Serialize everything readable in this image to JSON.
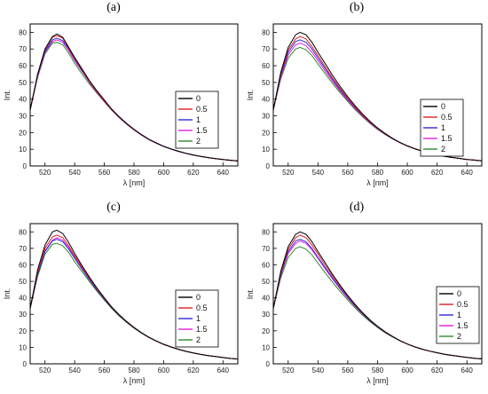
{
  "chart_data": [
    {
      "type": "line",
      "panel_label": "(a)",
      "xlabel": "λ [nm]",
      "ylabel": "Int.",
      "xlim": [
        510,
        650
      ],
      "ylim": [
        0,
        85
      ],
      "x_ticks": [
        520,
        540,
        560,
        580,
        600,
        620,
        640
      ],
      "y_ticks": [
        0,
        10,
        20,
        30,
        40,
        50,
        60,
        70,
        80
      ],
      "legend_position": "center-right",
      "x": [
        510,
        515,
        520,
        525,
        528,
        532,
        536,
        540,
        545,
        550,
        555,
        560,
        565,
        570,
        575,
        580,
        585,
        590,
        595,
        600,
        605,
        610,
        615,
        620,
        625,
        630,
        635,
        640,
        645,
        650
      ],
      "series": [
        {
          "name": "0",
          "color": "#000000",
          "values": [
            33.5,
            55,
            70,
            77.5,
            79,
            77,
            71,
            65,
            58,
            51,
            45,
            39.5,
            34,
            29.5,
            25.5,
            22,
            18.8,
            16,
            13.8,
            11.8,
            10.2,
            8.8,
            7.6,
            6.6,
            5.7,
            5,
            4.4,
            3.8,
            3.4,
            3
          ]
        },
        {
          "name": "0.5",
          "color": "#e02020",
          "values": [
            33.5,
            54.5,
            69.5,
            77,
            78,
            76.5,
            70.5,
            64.5,
            57.5,
            50.5,
            44.5,
            39,
            33.8,
            29.3,
            25.3,
            21.8,
            18.7,
            16,
            13.7,
            11.8,
            10.2,
            8.8,
            7.6,
            6.6,
            5.7,
            5,
            4.4,
            3.8,
            3.4,
            3
          ]
        },
        {
          "name": "1",
          "color": "#2a2ad8",
          "values": [
            33.5,
            54,
            68.5,
            75.5,
            76.5,
            75,
            70,
            64,
            57,
            50.5,
            44.5,
            39,
            33.8,
            29.2,
            25.2,
            21.7,
            18.6,
            15.9,
            13.7,
            11.7,
            10.1,
            8.7,
            7.5,
            6.5,
            5.7,
            5,
            4.4,
            3.8,
            3.4,
            3
          ]
        },
        {
          "name": "1.5",
          "color": "#e020e0",
          "values": [
            33.5,
            53.5,
            68,
            74.5,
            75.5,
            74,
            69,
            63,
            56.5,
            50,
            44,
            38.6,
            33.5,
            29,
            25,
            21.6,
            18.5,
            15.8,
            13.6,
            11.7,
            10.1,
            8.7,
            7.5,
            6.5,
            5.7,
            5,
            4.4,
            3.8,
            3.4,
            3
          ]
        },
        {
          "name": "2",
          "color": "#2e8b2e",
          "values": [
            33.5,
            53,
            67,
            73.5,
            74,
            72.5,
            67.5,
            61.5,
            55,
            49,
            43.5,
            38.3,
            33.3,
            28.9,
            25,
            21.5,
            18.5,
            15.8,
            13.6,
            11.7,
            10.1,
            8.7,
            7.5,
            6.5,
            5.7,
            5,
            4.4,
            3.8,
            3.4,
            3
          ]
        }
      ]
    },
    {
      "type": "line",
      "panel_label": "(b)",
      "xlabel": "λ [nm]",
      "ylabel": "Int.",
      "xlim": [
        510,
        650
      ],
      "ylim": [
        0,
        85
      ],
      "x_ticks": [
        520,
        540,
        560,
        580,
        600,
        620,
        640
      ],
      "y_ticks": [
        0,
        10,
        20,
        30,
        40,
        50,
        60,
        70,
        80
      ],
      "legend_position": "center-right",
      "x": [
        510,
        515,
        520,
        525,
        528,
        532,
        536,
        540,
        545,
        550,
        555,
        560,
        565,
        570,
        575,
        580,
        585,
        590,
        595,
        600,
        605,
        610,
        615,
        620,
        625,
        630,
        635,
        640,
        645,
        650
      ],
      "series": [
        {
          "name": "0",
          "color": "#000000",
          "values": [
            33.5,
            56,
            71,
            78.5,
            80,
            78.5,
            74,
            68,
            61,
            54,
            47.5,
            41.5,
            36,
            31,
            26.6,
            22.8,
            19.5,
            16.6,
            14.1,
            12,
            10.3,
            8.9,
            7.7,
            6.7,
            5.8,
            5.1,
            4.5,
            3.9,
            3.5,
            3.1
          ]
        },
        {
          "name": "0.5",
          "color": "#e02020",
          "values": [
            33.5,
            55,
            69.5,
            76,
            77.5,
            76,
            71.5,
            66,
            59,
            52.5,
            46.3,
            40.5,
            35.2,
            30.4,
            26.2,
            22.5,
            19.3,
            16.5,
            14,
            12,
            10.3,
            8.9,
            7.7,
            6.7,
            5.8,
            5.1,
            4.5,
            3.9,
            3.5,
            3.1
          ]
        },
        {
          "name": "1",
          "color": "#2a2ad8",
          "values": [
            33.5,
            54,
            68,
            74.5,
            75.5,
            74,
            70,
            64.5,
            58,
            51.5,
            45.5,
            40,
            34.8,
            30.1,
            26,
            22.3,
            19.1,
            16.4,
            14,
            12,
            10.3,
            8.9,
            7.7,
            6.7,
            5.8,
            5.1,
            4.5,
            3.9,
            3.5,
            3.1
          ]
        },
        {
          "name": "1.5",
          "color": "#e020e0",
          "values": [
            33.5,
            53,
            66.5,
            72.5,
            73.5,
            72,
            68,
            63,
            56.5,
            50.5,
            44.7,
            39.3,
            34.3,
            29.7,
            25.7,
            22.1,
            19,
            16.3,
            13.9,
            11.9,
            10.3,
            8.9,
            7.7,
            6.7,
            5.8,
            5.1,
            4.5,
            3.9,
            3.5,
            3.1
          ]
        },
        {
          "name": "2",
          "color": "#2e8b2e",
          "values": [
            33.5,
            52,
            64.5,
            70,
            71,
            69.5,
            66,
            61,
            55,
            49.2,
            43.8,
            38.6,
            33.7,
            29.3,
            25.4,
            21.9,
            18.8,
            16.2,
            13.9,
            11.9,
            10.2,
            8.8,
            7.6,
            6.6,
            5.8,
            5.1,
            4.5,
            3.9,
            3.5,
            3.1
          ]
        }
      ]
    },
    {
      "type": "line",
      "panel_label": "(c)",
      "xlabel": "λ [nm]",
      "ylabel": "Int.",
      "xlim": [
        510,
        650
      ],
      "ylim": [
        0,
        85
      ],
      "x_ticks": [
        520,
        540,
        560,
        580,
        600,
        620,
        640
      ],
      "y_ticks": [
        0,
        10,
        20,
        30,
        40,
        50,
        60,
        70,
        80
      ],
      "legend_position": "center-right",
      "x": [
        510,
        515,
        520,
        525,
        528,
        532,
        536,
        540,
        545,
        550,
        555,
        560,
        565,
        570,
        575,
        580,
        585,
        590,
        595,
        600,
        605,
        610,
        615,
        620,
        625,
        630,
        635,
        640,
        645,
        650
      ],
      "series": [
        {
          "name": "0",
          "color": "#000000",
          "values": [
            33.5,
            57,
            72,
            80,
            81,
            79,
            73.5,
            67,
            59.5,
            52.5,
            46,
            40,
            34.5,
            29.8,
            25.7,
            22.1,
            18.9,
            16.2,
            13.9,
            11.9,
            10.2,
            8.8,
            7.6,
            6.6,
            5.7,
            5,
            4.4,
            3.8,
            3.3,
            2.9
          ]
        },
        {
          "name": "0.5",
          "color": "#e02020",
          "values": [
            33.5,
            55.5,
            70,
            77,
            78,
            76.5,
            71.5,
            65.5,
            58.5,
            51.8,
            45.5,
            39.6,
            34.2,
            29.6,
            25.5,
            22,
            18.8,
            16.1,
            13.8,
            11.9,
            10.2,
            8.8,
            7.6,
            6.6,
            5.7,
            5,
            4.4,
            3.8,
            3.3,
            2.9
          ]
        },
        {
          "name": "1",
          "color": "#2a2ad8",
          "values": [
            33.5,
            54,
            68,
            74.5,
            75.5,
            74,
            69.5,
            64,
            57.3,
            50.8,
            44.8,
            39.1,
            33.9,
            29.3,
            25.3,
            21.8,
            18.7,
            16,
            13.8,
            11.8,
            10.2,
            8.8,
            7.6,
            6.6,
            5.7,
            5,
            4.4,
            3.8,
            3.3,
            2.9
          ]
        },
        {
          "name": "1.5",
          "color": "#e020e0",
          "values": [
            33.5,
            54.5,
            68.5,
            75,
            76.5,
            75,
            70.5,
            64.8,
            58,
            51.4,
            45.2,
            39.4,
            34.1,
            29.5,
            25.4,
            21.9,
            18.8,
            16.1,
            13.8,
            11.8,
            10.2,
            8.8,
            7.6,
            6.6,
            5.7,
            5,
            4.4,
            3.8,
            3.3,
            2.9
          ]
        },
        {
          "name": "2",
          "color": "#2e8b2e",
          "values": [
            33.5,
            53,
            66.5,
            72.5,
            73,
            71.5,
            67.5,
            62,
            55.8,
            49.8,
            44,
            38.6,
            33.5,
            29,
            25.1,
            21.6,
            18.6,
            16,
            13.7,
            11.8,
            10.2,
            8.8,
            7.6,
            6.6,
            5.7,
            5,
            4.4,
            3.8,
            3.3,
            2.9
          ]
        }
      ]
    },
    {
      "type": "line",
      "panel_label": "(d)",
      "xlabel": "λ [nm]",
      "ylabel": "Int.",
      "xlim": [
        510,
        650
      ],
      "ylim": [
        0,
        85
      ],
      "x_ticks": [
        520,
        540,
        560,
        580,
        600,
        620,
        640
      ],
      "y_ticks": [
        0,
        10,
        20,
        30,
        40,
        50,
        60,
        70,
        80
      ],
      "legend_position": "center-right",
      "x": [
        510,
        515,
        520,
        525,
        528,
        532,
        536,
        540,
        545,
        550,
        555,
        560,
        565,
        570,
        575,
        580,
        585,
        590,
        595,
        600,
        605,
        610,
        615,
        620,
        625,
        630,
        635,
        640,
        645,
        650
      ],
      "series": [
        {
          "name": "0",
          "color": "#000000",
          "values": [
            33.5,
            56,
            71,
            78.5,
            80,
            78.5,
            74,
            68,
            61,
            54,
            47.5,
            41.5,
            36,
            31,
            26.6,
            22.8,
            19.5,
            16.6,
            14.1,
            12,
            10.3,
            8.9,
            7.7,
            6.7,
            5.8,
            5.1,
            4.5,
            3.9,
            3.4,
            3
          ]
        },
        {
          "name": "0.5",
          "color": "#e02020",
          "values": [
            33.5,
            55,
            69.5,
            76.5,
            78,
            76.5,
            72,
            66.5,
            59.5,
            53,
            46.8,
            41,
            35.6,
            30.7,
            26.4,
            22.7,
            19.4,
            16.6,
            14.1,
            12,
            10.3,
            8.9,
            7.7,
            6.7,
            5.8,
            5.1,
            4.5,
            3.9,
            3.4,
            3
          ]
        },
        {
          "name": "1",
          "color": "#2a2ad8",
          "values": [
            33.5,
            54,
            68,
            74.5,
            75.5,
            74,
            70,
            64.5,
            58,
            51.8,
            45.8,
            40.2,
            35,
            30.3,
            26.1,
            22.5,
            19.3,
            16.5,
            14.1,
            12,
            10.3,
            8.9,
            7.7,
            6.7,
            5.8,
            5.1,
            4.5,
            3.9,
            3.4,
            3
          ]
        },
        {
          "name": "1.5",
          "color": "#e020e0",
          "values": [
            33.5,
            53.5,
            67,
            73,
            74.5,
            73,
            69,
            63.8,
            57.3,
            51.2,
            45.3,
            39.8,
            34.7,
            30.1,
            26,
            22.4,
            19.2,
            16.5,
            14.1,
            12,
            10.3,
            8.9,
            7.7,
            6.7,
            5.8,
            5.1,
            4.5,
            3.9,
            3.4,
            3
          ]
        },
        {
          "name": "2",
          "color": "#2e8b2e",
          "values": [
            33.5,
            52,
            64.5,
            70,
            71,
            69.5,
            66,
            61,
            55,
            49.3,
            43.8,
            38.6,
            33.8,
            29.4,
            25.5,
            22,
            18.9,
            16.3,
            14,
            12,
            10.3,
            8.9,
            7.7,
            6.7,
            5.8,
            5.1,
            4.5,
            3.9,
            3.4,
            3
          ]
        }
      ]
    }
  ]
}
